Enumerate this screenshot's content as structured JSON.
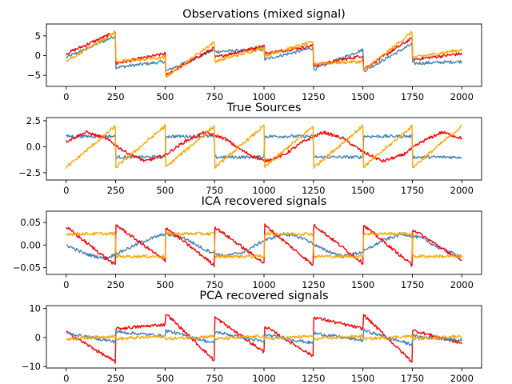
{
  "chart_data": [
    {
      "type": "line",
      "title": "Observations (mixed signal)",
      "xlim": [
        -100,
        2100
      ],
      "ylim": [
        -7.8,
        8.0
      ],
      "xticks": [
        "0",
        "250",
        "500",
        "750",
        "1000",
        "1250",
        "1500",
        "1750",
        "2000"
      ],
      "yticks": [
        "5",
        "0",
        "−5"
      ],
      "ytick_values": [
        5,
        0,
        -5
      ],
      "grid": false,
      "series": [
        {
          "color": "#4682b4",
          "x": [
            0,
            250,
            251,
            500,
            501,
            750,
            751,
            1000,
            1001,
            1250,
            1251,
            1500,
            1501,
            1750,
            1751,
            2000
          ],
          "y": [
            -0.5,
            5.0,
            -3.0,
            -1.5,
            -4.0,
            1.5,
            1.0,
            1.5,
            -1.0,
            2.0,
            -3.5,
            1.5,
            -4.0,
            3.0,
            -2.0,
            -1.5
          ]
        },
        {
          "color": "#ff0000",
          "x": [
            0,
            250,
            251,
            500,
            501,
            750,
            751,
            1000,
            1001,
            1250,
            1251,
            1500,
            1501,
            1750,
            1751,
            2000
          ],
          "y": [
            0.5,
            6.0,
            -2.0,
            0.5,
            -5.0,
            2.0,
            -0.5,
            2.5,
            0.5,
            2.5,
            -2.5,
            0.0,
            -3.5,
            4.5,
            -1.0,
            0.5
          ]
        },
        {
          "color": "#ffa500",
          "x": [
            0,
            250,
            251,
            500,
            501,
            750,
            751,
            1000,
            1001,
            1250,
            1251,
            1500,
            1501,
            1750,
            1751,
            2000
          ],
          "y": [
            -1.5,
            6.0,
            -1.5,
            -0.5,
            -5.5,
            3.5,
            -1.5,
            2.0,
            0.0,
            3.5,
            -2.0,
            -1.5,
            -4.0,
            6.0,
            -0.5,
            1.5
          ]
        }
      ]
    },
    {
      "type": "line",
      "title": "True Sources",
      "xlim": [
        -100,
        2100
      ],
      "ylim": [
        -3.2,
        2.8
      ],
      "xticks": [
        "0",
        "250",
        "500",
        "750",
        "1000",
        "1250",
        "1500",
        "1750",
        "2000"
      ],
      "yticks": [
        "2.5",
        "0.0",
        "−2.5"
      ],
      "ytick_values": [
        2.5,
        0.0,
        -2.5
      ],
      "grid": false,
      "series": [
        {
          "color": "#4682b4",
          "x": [
            0,
            250,
            251,
            500,
            501,
            750,
            751,
            1000,
            1001,
            1250,
            1251,
            1500,
            1501,
            1750,
            1751,
            2000
          ],
          "y": [
            1.0,
            1.0,
            -1.0,
            -1.0,
            1.0,
            1.0,
            -1.0,
            -1.0,
            1.0,
            1.0,
            -1.0,
            -1.0,
            1.0,
            1.0,
            -1.0,
            -1.0
          ]
        },
        {
          "color": "#ff0000",
          "x": [
            0,
            100,
            200,
            300,
            400,
            500,
            600,
            700,
            800,
            900,
            1000,
            1100,
            1200,
            1300,
            1400,
            1500,
            1600,
            1700,
            1800,
            1900,
            2000
          ],
          "y": [
            0.5,
            1.4,
            0.8,
            -0.5,
            -1.4,
            -0.8,
            0.5,
            1.4,
            0.8,
            -0.5,
            -1.4,
            -0.8,
            0.5,
            1.4,
            0.8,
            -0.5,
            -1.4,
            -0.8,
            0.5,
            1.4,
            0.8
          ]
        },
        {
          "color": "#ffa500",
          "x": [
            0,
            250,
            251,
            500,
            501,
            750,
            751,
            1000,
            1001,
            1250,
            1251,
            1500,
            1501,
            1750,
            1751,
            2000
          ],
          "y": [
            -2.0,
            2.0,
            -2.0,
            2.0,
            -2.0,
            2.0,
            -2.0,
            2.0,
            -2.0,
            2.0,
            -2.0,
            2.0,
            -2.0,
            2.0,
            -2.0,
            2.0
          ]
        }
      ]
    },
    {
      "type": "line",
      "title": "ICA recovered signals",
      "xlim": [
        -100,
        2100
      ],
      "ylim": [
        -0.065,
        0.075
      ],
      "xticks": [
        "0",
        "250",
        "500",
        "750",
        "1000",
        "1250",
        "1500",
        "1750",
        "2000"
      ],
      "yticks": [
        "0.05",
        "0.00",
        "−0.05"
      ],
      "ytick_values": [
        0.05,
        0.0,
        -0.05
      ],
      "grid": false,
      "series": [
        {
          "color": "#4682b4",
          "x": [
            0,
            100,
            200,
            300,
            400,
            500,
            600,
            700,
            800,
            900,
            1000,
            1100,
            1200,
            1300,
            1400,
            1500,
            1600,
            1700,
            1800,
            1900,
            2000
          ],
          "y": [
            0.0,
            -0.02,
            -0.03,
            -0.01,
            0.01,
            0.025,
            0.015,
            -0.01,
            -0.025,
            -0.015,
            0.01,
            0.025,
            0.015,
            -0.01,
            -0.025,
            -0.015,
            0.01,
            0.025,
            0.015,
            -0.01,
            -0.025
          ]
        },
        {
          "color": "#ff0000",
          "x": [
            0,
            250,
            251,
            500,
            501,
            750,
            751,
            1000,
            1001,
            1250,
            1251,
            1500,
            1501,
            1750,
            1751,
            2000
          ],
          "y": [
            0.04,
            -0.045,
            0.045,
            -0.035,
            0.04,
            -0.045,
            0.04,
            -0.04,
            0.045,
            -0.045,
            0.045,
            -0.04,
            0.045,
            -0.045,
            0.035,
            -0.035
          ]
        },
        {
          "color": "#ffa500",
          "x": [
            0,
            250,
            251,
            500,
            501,
            750,
            751,
            1000,
            1001,
            1250,
            1251,
            1500,
            1501,
            1750,
            1751,
            2000
          ],
          "y": [
            0.025,
            0.025,
            -0.025,
            -0.025,
            0.025,
            0.025,
            -0.025,
            -0.025,
            0.025,
            0.025,
            -0.025,
            -0.025,
            0.025,
            0.025,
            -0.025,
            -0.025
          ]
        }
      ]
    },
    {
      "type": "line",
      "title": "PCA recovered signals",
      "xlim": [
        -100,
        2100
      ],
      "ylim": [
        -10.5,
        11.0
      ],
      "xticks": [
        "0",
        "250",
        "500",
        "750",
        "1000",
        "1250",
        "1500",
        "1750",
        "2000"
      ],
      "yticks": [
        "10",
        "0",
        "−10"
      ],
      "ytick_values": [
        10,
        0,
        -10
      ],
      "grid": false,
      "series": [
        {
          "color": "#ff0000",
          "x": [
            0,
            250,
            251,
            500,
            501,
            750,
            751,
            1000,
            1001,
            1250,
            1251,
            1500,
            1501,
            1750,
            1751,
            2000
          ],
          "y": [
            2.0,
            -8.5,
            3.0,
            4.5,
            8.5,
            -8.0,
            7.0,
            -5.0,
            4.0,
            -6.5,
            7.0,
            3.0,
            8.0,
            -8.5,
            2.5,
            -2.0
          ]
        },
        {
          "color": "#4682b4",
          "x": [
            0,
            250,
            251,
            500,
            501,
            750,
            751,
            1000,
            1001,
            1250,
            1251,
            1500,
            1501,
            1750,
            1751,
            2000
          ],
          "y": [
            1.5,
            -1.5,
            2.0,
            0.5,
            2.5,
            -2.0,
            2.0,
            -1.5,
            1.0,
            -2.0,
            1.5,
            -1.0,
            2.5,
            -2.5,
            0.5,
            -1.0
          ]
        },
        {
          "color": "#ffa500",
          "x": [
            0,
            250,
            251,
            500,
            501,
            750,
            751,
            1000,
            1001,
            1250,
            1251,
            1500,
            1501,
            1750,
            1751,
            2000
          ],
          "y": [
            -0.5,
            0.5,
            -0.5,
            0.5,
            -0.5,
            0.5,
            -0.5,
            0.5,
            -0.5,
            0.5,
            -0.5,
            0.5,
            -0.5,
            0.5,
            -0.5,
            0.5
          ]
        }
      ]
    }
  ]
}
